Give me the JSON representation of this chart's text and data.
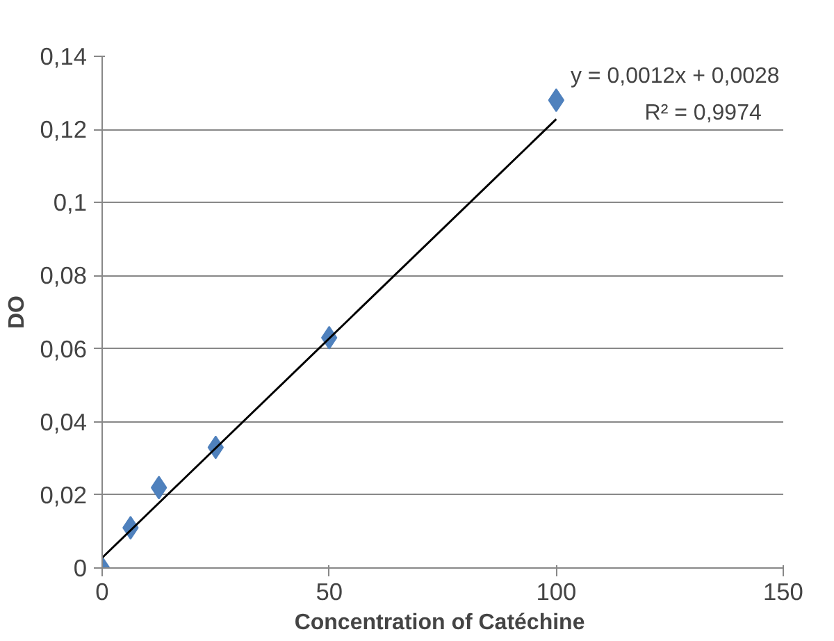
{
  "chart_data": {
    "type": "scatter",
    "xlabel": "Concentration of  Catéchine",
    "ylabel": "DO",
    "marker": "diamond",
    "grid": "y",
    "xlim": [
      0,
      150
    ],
    "xticks": [
      0,
      50,
      100,
      150
    ],
    "ylim": [
      0,
      0.14
    ],
    "yticks": [
      {
        "value": 0,
        "label": "0"
      },
      {
        "value": 0.02,
        "label": "0,02"
      },
      {
        "value": 0.04,
        "label": "0,04"
      },
      {
        "value": 0.06,
        "label": "0,06"
      },
      {
        "value": 0.08,
        "label": "0,08"
      },
      {
        "value": 0.1,
        "label": "0,1"
      },
      {
        "value": 0.12,
        "label": "0,12"
      },
      {
        "value": 0.14,
        "label": "0,14"
      }
    ],
    "series": [
      {
        "color": "#4f81bd",
        "x": [
          0,
          6.25,
          12.5,
          25,
          50,
          100
        ],
        "values": [
          0,
          0.011,
          0.022,
          0.033,
          0.063,
          0.128
        ]
      },
      {
        "type": "line",
        "marker": "none",
        "color": "#000000",
        "x": [
          0,
          100
        ],
        "values": [
          0.0028,
          0.1228
        ]
      }
    ],
    "annotations": [
      "y = 0,0012x + 0,0028",
      "R² = 0,9974"
    ]
  }
}
